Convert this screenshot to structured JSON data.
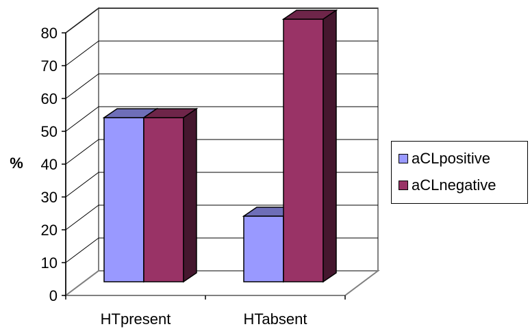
{
  "chart_data": {
    "type": "bar",
    "categories": [
      "HTpresent",
      "HTabsent"
    ],
    "series": [
      {
        "name": "aCLpositive",
        "values": [
          50,
          20
        ],
        "color": "#9999ff"
      },
      {
        "name": "aCLnegative",
        "values": [
          50,
          80
        ],
        "color": "#993366"
      }
    ],
    "title": "",
    "xlabel": "",
    "ylabel": "%",
    "ylim": [
      0,
      80
    ],
    "yticks": [
      0,
      10,
      20,
      30,
      40,
      50,
      60,
      70,
      80
    ],
    "grid": true,
    "legend": "right",
    "style": "3d-clustered-column"
  }
}
